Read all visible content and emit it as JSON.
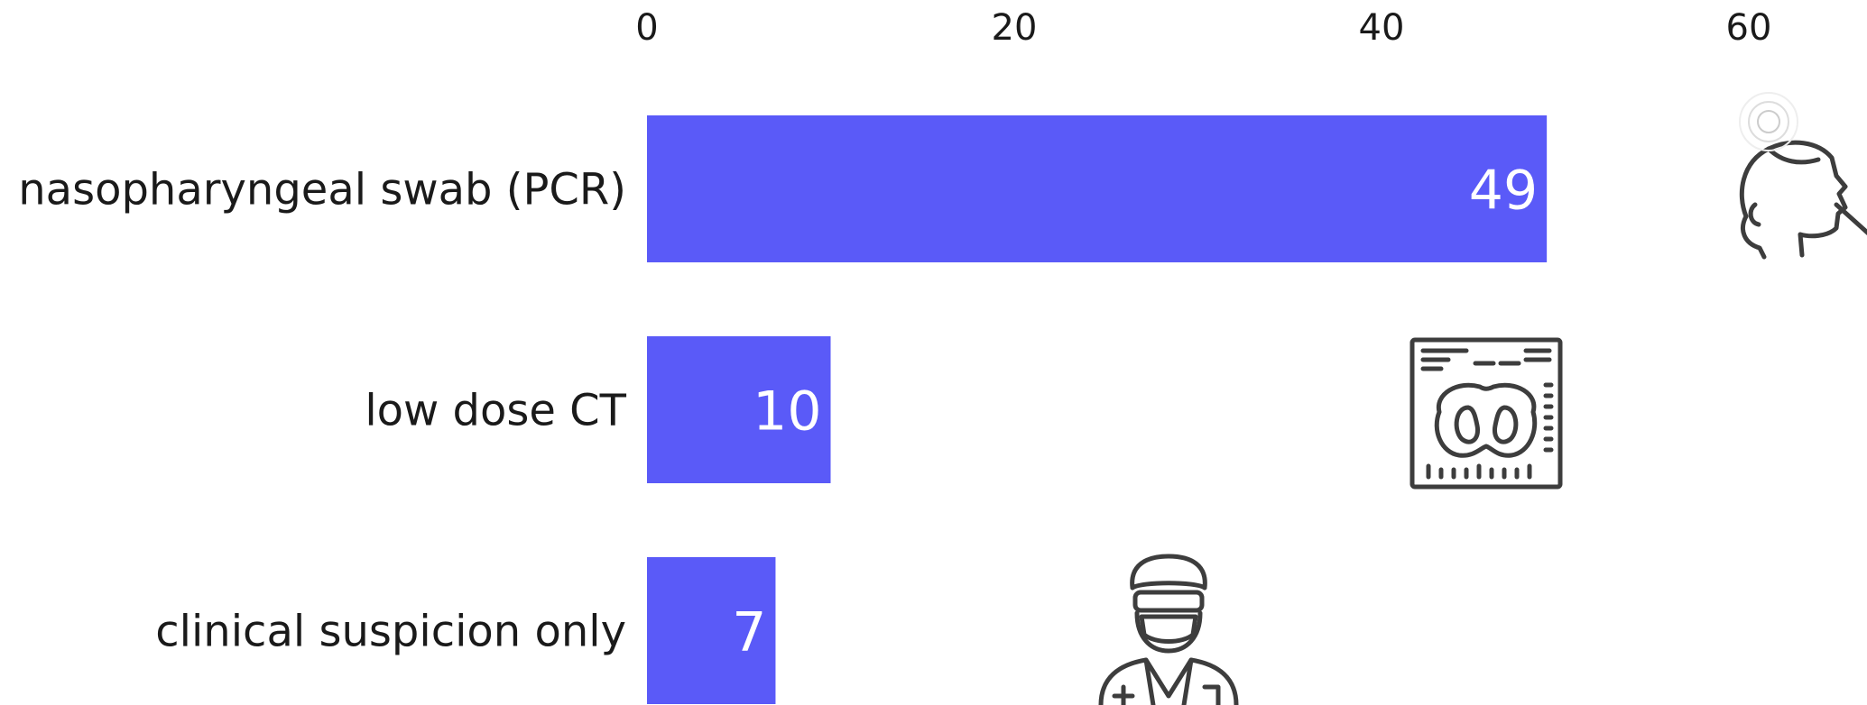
{
  "chart_data": {
    "type": "bar",
    "orientation": "horizontal",
    "categories": [
      "nasopharyngeal swab (PCR)",
      "low dose CT",
      "clinical suspicion only"
    ],
    "values": [
      49,
      10,
      7
    ],
    "x_ticks": [
      0,
      20,
      40,
      60
    ],
    "xlim": [
      0,
      60
    ],
    "axis_position": "top",
    "grid": false,
    "legend": "none",
    "bar_color": "#5a5af8",
    "value_label_color": "#ffffff",
    "icons": [
      "nasal-swab-icon",
      "ct-scan-icon",
      "doctor-icon"
    ]
  }
}
